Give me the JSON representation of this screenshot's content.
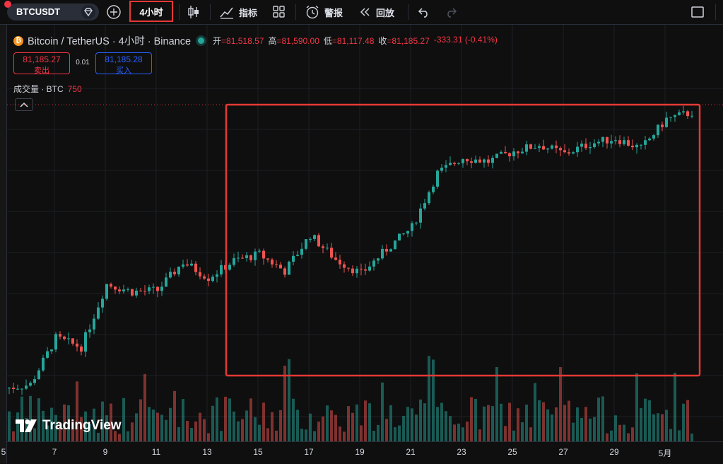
{
  "toolbar": {
    "symbol": "BTCUSDT",
    "timeframe": "4小时",
    "indicators_label": "指标",
    "alerts_label": "警报",
    "replay_label": "回放"
  },
  "legend": {
    "title": "Bitcoin / TetherUS · 4小时 · Binance",
    "ohlc": [
      {
        "k": "开",
        "v": "=81,518.57"
      },
      {
        "k": "高",
        "v": "=81,590.00"
      },
      {
        "k": "低",
        "v": "=81,117.48"
      },
      {
        "k": "收",
        "v": "=81,185.27"
      },
      {
        "k": "",
        "v": "-333.31 (-0.41%)"
      }
    ],
    "sell_price": "81,185.27",
    "sell_label": "卖出",
    "spread": "0.01",
    "buy_price": "81,185.28",
    "buy_label": "买入",
    "volume_label": "成交量 · BTC",
    "volume_value": "750"
  },
  "brand": "TradingView",
  "colors": {
    "up": "#26a69a",
    "down": "#ef5350",
    "highlight": "#e53935",
    "background": "#0f0f0f"
  },
  "chart_data": {
    "type": "candlestick",
    "x_ticks": [
      "5",
      "7",
      "9",
      "11",
      "13",
      "15",
      "17",
      "19",
      "21",
      "23",
      "25",
      "27",
      "29",
      "5月"
    ],
    "close_anchors": [
      {
        "date": "5",
        "close": 75600
      },
      {
        "date": "6",
        "close": 75900
      },
      {
        "date": "7",
        "close": 79500
      },
      {
        "date": "8",
        "close": 78800
      },
      {
        "date": "9",
        "close": 83700
      },
      {
        "date": "10",
        "close": 83100
      },
      {
        "date": "11",
        "close": 83200
      },
      {
        "date": "12",
        "close": 85400
      },
      {
        "date": "13",
        "close": 84200
      },
      {
        "date": "14",
        "close": 85500
      },
      {
        "date": "15",
        "close": 86000
      },
      {
        "date": "16",
        "close": 84700
      },
      {
        "date": "17",
        "close": 87500
      },
      {
        "date": "18",
        "close": 85600
      },
      {
        "date": "19",
        "close": 84500
      },
      {
        "date": "20",
        "close": 86400
      },
      {
        "date": "21",
        "close": 88100
      },
      {
        "date": "22",
        "close": 92300
      },
      {
        "date": "23",
        "close": 93500
      },
      {
        "date": "24",
        "close": 93200
      },
      {
        "date": "25",
        "close": 94000
      },
      {
        "date": "26",
        "close": 94500
      },
      {
        "date": "27",
        "close": 93800
      },
      {
        "date": "28",
        "close": 94600
      },
      {
        "date": "29",
        "close": 95000
      },
      {
        "date": "30",
        "close": 94200
      },
      {
        "date": "5月1日",
        "close": 96500
      },
      {
        "date": "5月2日",
        "close": 97000
      }
    ],
    "last_close": 81185.27,
    "highlight_box": true,
    "grid": true
  }
}
